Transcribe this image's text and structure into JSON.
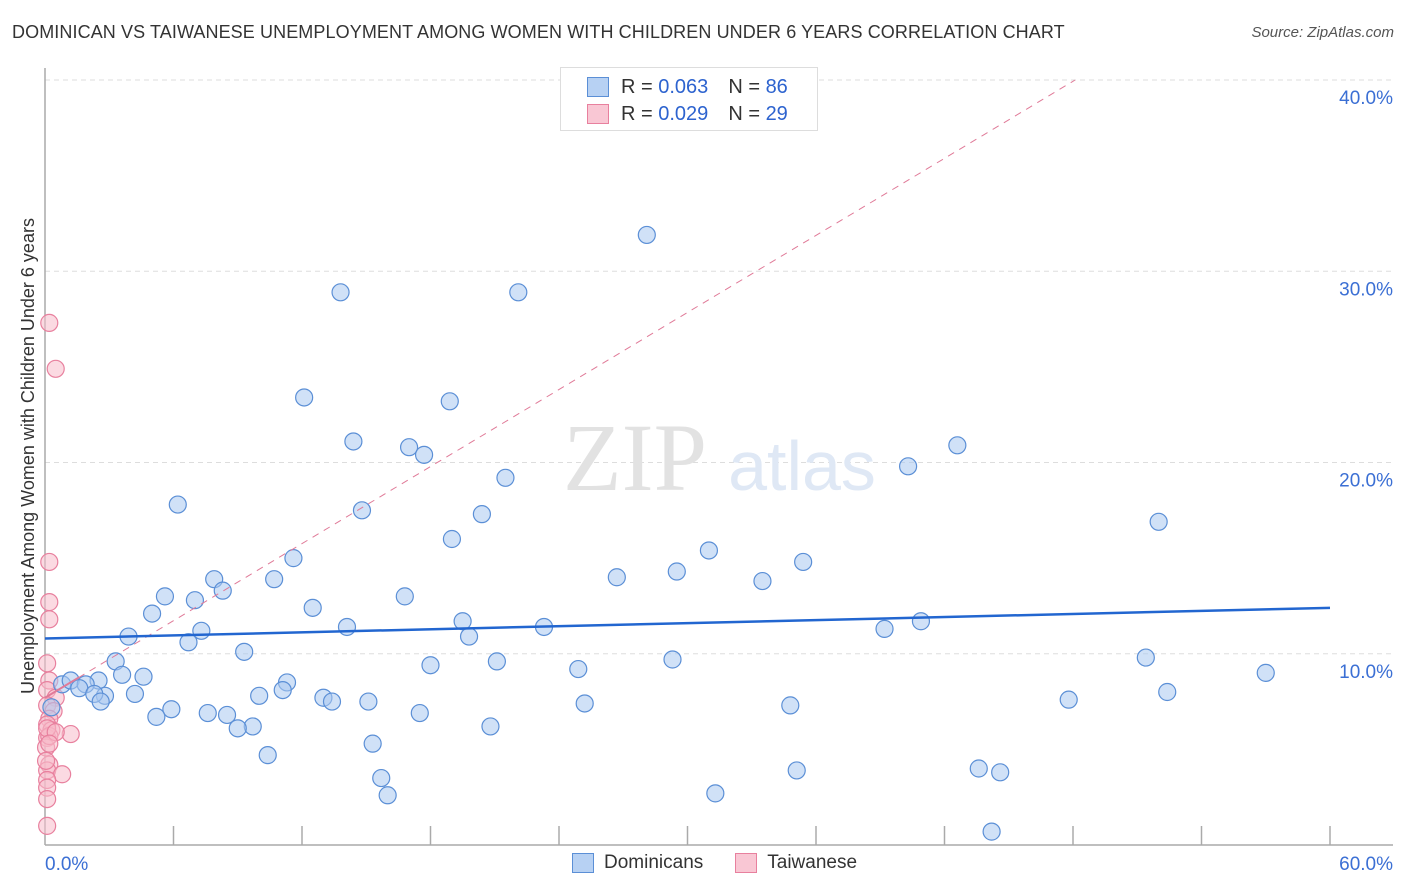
{
  "title": "DOMINICAN VS TAIWANESE UNEMPLOYMENT AMONG WOMEN WITH CHILDREN UNDER 6 YEARS CORRELATION CHART",
  "source": "Source: ZipAtlas.com",
  "watermark": "ZIPatlas",
  "legend_box": [
    {
      "r_label": "R = ",
      "r": "0.063",
      "n_label": "N = ",
      "n": "86"
    },
    {
      "r_label": "R = ",
      "r": "0.029",
      "n_label": "N = ",
      "n": "29"
    }
  ],
  "colors": {
    "blue_fill": "#a9c8f0",
    "blue_stroke": "#5b8fd6",
    "blue_line": "#2266d0",
    "pink_fill": "#f7bccb",
    "pink_stroke": "#e8809e",
    "pink_line": "#e07a98"
  },
  "chart_data": {
    "type": "scatter",
    "title": "DOMINICAN VS TAIWANESE UNEMPLOYMENT AMONG WOMEN WITH CHILDREN UNDER 6 YEARS CORRELATION CHART",
    "xlabel": "",
    "ylabel": "Unemployment Among Women with Children Under 6 years",
    "xlim": [
      0,
      60
    ],
    "ylim": [
      0,
      40
    ],
    "x_tick_labels": [
      "0.0%",
      "60.0%"
    ],
    "y_ticks": [
      10,
      20,
      30,
      40
    ],
    "y_tick_labels": [
      "10.0%",
      "20.0%",
      "30.0%",
      "40.0%"
    ],
    "legend": [
      "Dominicans",
      "Taiwanese"
    ],
    "legend_position": "bottom",
    "series": [
      {
        "name": "Dominicans",
        "R": 0.063,
        "N": 86,
        "trend": [
          [
            0,
            10.8
          ],
          [
            60,
            12.4
          ]
        ],
        "points": [
          [
            28.1,
            31.9
          ],
          [
            13.8,
            28.9
          ],
          [
            22.1,
            28.9
          ],
          [
            12.1,
            23.4
          ],
          [
            18.9,
            23.2
          ],
          [
            14.4,
            21.1
          ],
          [
            17.0,
            20.8
          ],
          [
            17.7,
            20.4
          ],
          [
            42.6,
            20.9
          ],
          [
            40.3,
            19.8
          ],
          [
            21.5,
            19.2
          ],
          [
            6.2,
            17.8
          ],
          [
            14.8,
            17.5
          ],
          [
            20.4,
            17.3
          ],
          [
            52.0,
            16.9
          ],
          [
            19.0,
            16.0
          ],
          [
            31.0,
            15.4
          ],
          [
            11.6,
            15.0
          ],
          [
            35.4,
            14.8
          ],
          [
            29.5,
            14.3
          ],
          [
            26.7,
            14.0
          ],
          [
            7.9,
            13.9
          ],
          [
            10.7,
            13.9
          ],
          [
            33.5,
            13.8
          ],
          [
            8.3,
            13.3
          ],
          [
            5.6,
            13.0
          ],
          [
            16.8,
            13.0
          ],
          [
            7.0,
            12.8
          ],
          [
            5.0,
            12.1
          ],
          [
            12.5,
            12.4
          ],
          [
            19.5,
            11.7
          ],
          [
            14.1,
            11.4
          ],
          [
            23.3,
            11.4
          ],
          [
            39.2,
            11.3
          ],
          [
            40.9,
            11.7
          ],
          [
            7.3,
            11.2
          ],
          [
            3.9,
            10.9
          ],
          [
            19.8,
            10.9
          ],
          [
            6.7,
            10.6
          ],
          [
            9.3,
            10.1
          ],
          [
            29.3,
            9.7
          ],
          [
            21.1,
            9.6
          ],
          [
            51.4,
            9.8
          ],
          [
            3.3,
            9.6
          ],
          [
            18.0,
            9.4
          ],
          [
            24.9,
            9.2
          ],
          [
            57.0,
            9.0
          ],
          [
            3.6,
            8.9
          ],
          [
            4.6,
            8.8
          ],
          [
            11.3,
            8.5
          ],
          [
            2.5,
            8.6
          ],
          [
            0.8,
            8.4
          ],
          [
            1.2,
            8.6
          ],
          [
            1.9,
            8.4
          ],
          [
            1.6,
            8.2
          ],
          [
            11.1,
            8.1
          ],
          [
            52.4,
            8.0
          ],
          [
            2.8,
            7.8
          ],
          [
            2.3,
            7.9
          ],
          [
            4.2,
            7.9
          ],
          [
            10.0,
            7.8
          ],
          [
            13.0,
            7.7
          ],
          [
            13.4,
            7.5
          ],
          [
            15.1,
            7.5
          ],
          [
            2.6,
            7.5
          ],
          [
            25.2,
            7.4
          ],
          [
            47.8,
            7.6
          ],
          [
            34.8,
            7.3
          ],
          [
            5.9,
            7.1
          ],
          [
            7.6,
            6.9
          ],
          [
            8.5,
            6.8
          ],
          [
            5.2,
            6.7
          ],
          [
            17.5,
            6.9
          ],
          [
            9.7,
            6.2
          ],
          [
            9.0,
            6.1
          ],
          [
            20.8,
            6.2
          ],
          [
            15.3,
            5.3
          ],
          [
            10.4,
            4.7
          ],
          [
            35.1,
            3.9
          ],
          [
            15.7,
            3.5
          ],
          [
            43.6,
            4.0
          ],
          [
            44.6,
            3.8
          ],
          [
            16.0,
            2.6
          ],
          [
            31.3,
            2.7
          ],
          [
            44.2,
            0.7
          ],
          [
            0.3,
            7.2
          ]
        ]
      },
      {
        "name": "Taiwanese",
        "R": 0.029,
        "N": 29,
        "trend": [
          [
            0,
            7.7
          ],
          [
            48.1,
            40
          ]
        ],
        "points": [
          [
            0.2,
            27.3
          ],
          [
            0.5,
            24.9
          ],
          [
            0.2,
            14.8
          ],
          [
            0.2,
            12.7
          ],
          [
            0.2,
            11.8
          ],
          [
            0.1,
            9.5
          ],
          [
            0.2,
            8.6
          ],
          [
            0.1,
            8.1
          ],
          [
            0.5,
            7.7
          ],
          [
            0.1,
            7.3
          ],
          [
            0.4,
            7.0
          ],
          [
            0.2,
            6.6
          ],
          [
            0.1,
            6.3
          ],
          [
            0.3,
            6.0
          ],
          [
            1.2,
            5.8
          ],
          [
            0.1,
            5.6
          ],
          [
            0.05,
            5.1
          ],
          [
            0.2,
            4.2
          ],
          [
            0.1,
            3.9
          ],
          [
            0.8,
            3.7
          ],
          [
            0.1,
            3.4
          ],
          [
            0.1,
            3.0
          ],
          [
            0.1,
            2.4
          ],
          [
            0.1,
            1.0
          ],
          [
            0.2,
            5.7
          ],
          [
            0.1,
            6.1
          ],
          [
            0.5,
            5.9
          ],
          [
            0.2,
            5.3
          ],
          [
            0.05,
            4.4
          ]
        ]
      }
    ]
  }
}
